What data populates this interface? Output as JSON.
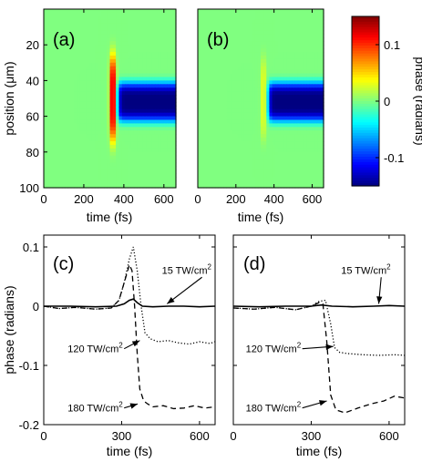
{
  "colorbar": {
    "label": "phase (radians)",
    "range": [
      -0.15,
      0.15
    ],
    "ticks": [
      "0.1",
      "0",
      "-0.1"
    ],
    "tick_values": [
      0.1,
      0,
      -0.1
    ],
    "colormap": "jet"
  },
  "chart_data": [
    {
      "type": "heatmap",
      "panel": "(a)",
      "xlabel": "time (fs)",
      "ylabel": "position (μm)",
      "xlim": [
        0,
        660
      ],
      "ylim": [
        100,
        0
      ],
      "xticks": [
        "0",
        "200",
        "400",
        "600"
      ],
      "yticks": [
        "20",
        "40",
        "60",
        "80",
        "100"
      ],
      "background_value": 0.0,
      "features": [
        {
          "kind": "positive-lobe",
          "t_center": 345,
          "pos_center": 50,
          "t_width": 14,
          "pos_halfwidth": 24,
          "peak": 0.15
        },
        {
          "kind": "negative-band",
          "t_start": 372,
          "pos_center": 52,
          "pos_halfwidth": 11,
          "depth": -0.15
        }
      ]
    },
    {
      "type": "heatmap",
      "panel": "(b)",
      "xlabel": "time (fs)",
      "xlim": [
        0,
        660
      ],
      "ylim": [
        100,
        0
      ],
      "xticks": [
        "0",
        "200",
        "400",
        "600"
      ],
      "background_value": 0.0,
      "features": [
        {
          "kind": "positive-lobe",
          "t_center": 345,
          "pos_center": 50,
          "t_width": 12,
          "pos_halfwidth": 22,
          "peak": 0.04
        },
        {
          "kind": "negative-band",
          "t_start": 372,
          "pos_center": 52,
          "pos_halfwidth": 11,
          "depth": -0.15
        }
      ]
    },
    {
      "type": "line",
      "panel": "(c)",
      "xlabel": "time (fs)",
      "ylabel": "phase (radians)",
      "xlim": [
        0,
        660
      ],
      "ylim": [
        -0.2,
        0.12
      ],
      "xticks": [
        "0",
        "300",
        "600"
      ],
      "yticks": [
        "0.1",
        "0",
        "-0.1",
        "-0.2"
      ],
      "series": [
        {
          "name": "15 TW/cm²",
          "style": "solid",
          "x": [
            0,
            100,
            200,
            280,
            310,
            330,
            345,
            360,
            380,
            420,
            480,
            540,
            600,
            660
          ],
          "y": [
            0.0,
            0.0,
            -0.001,
            0.0,
            0.004,
            0.01,
            0.012,
            0.006,
            0.0,
            -0.001,
            0.0,
            0.0,
            -0.001,
            0.0
          ]
        },
        {
          "name": "120 TW/cm²",
          "style": "dotted",
          "x": [
            0,
            60,
            120,
            200,
            260,
            290,
            310,
            330,
            345,
            360,
            375,
            390,
            410,
            440,
            480,
            520,
            560,
            600,
            640,
            660
          ],
          "y": [
            0.0,
            -0.004,
            -0.002,
            -0.005,
            -0.003,
            0.01,
            0.04,
            0.08,
            0.1,
            0.06,
            0.0,
            -0.045,
            -0.055,
            -0.06,
            -0.058,
            -0.062,
            -0.064,
            -0.06,
            -0.063,
            -0.06
          ]
        },
        {
          "name": "180 TW/cm²",
          "style": "dashed",
          "x": [
            0,
            60,
            120,
            200,
            260,
            290,
            310,
            330,
            340,
            350,
            360,
            370,
            385,
            400,
            420,
            460,
            500,
            540,
            580,
            620,
            660
          ],
          "y": [
            0.0,
            -0.004,
            -0.002,
            -0.005,
            -0.003,
            0.01,
            0.04,
            0.07,
            0.06,
            0.0,
            -0.08,
            -0.14,
            -0.16,
            -0.165,
            -0.17,
            -0.168,
            -0.173,
            -0.172,
            -0.168,
            -0.172,
            -0.17
          ]
        }
      ],
      "annotations": [
        {
          "text": "15 TW/cm",
          "sup": "2",
          "x": 455,
          "y": 0.055,
          "ax": 475,
          "ay": 0.004
        },
        {
          "text": "120 TW/cm",
          "sup": "2",
          "x": 92,
          "y": -0.078,
          "ax": 370,
          "ay": -0.058
        },
        {
          "text": "180 TW/cm",
          "sup": "2",
          "x": 92,
          "y": -0.178,
          "ax": 362,
          "ay": -0.165
        }
      ]
    },
    {
      "type": "line",
      "panel": "(d)",
      "xlabel": "time (fs)",
      "xlim": [
        0,
        660
      ],
      "ylim": [
        -0.2,
        0.12
      ],
      "xticks": [
        "0",
        "300",
        "600"
      ],
      "yticks": [
        "0.1",
        "0",
        "-0.1",
        "-0.2"
      ],
      "series": [
        {
          "name": "15 TW/cm²",
          "style": "solid",
          "x": [
            0,
            100,
            200,
            300,
            340,
            380,
            460,
            540,
            600,
            660
          ],
          "y": [
            0.0,
            -0.001,
            0.0,
            0.0,
            0.002,
            0.0,
            -0.001,
            0.0,
            0.001,
            0.0
          ]
        },
        {
          "name": "120 TW/cm²",
          "style": "dotted",
          "x": [
            0,
            80,
            160,
            240,
            300,
            330,
            355,
            375,
            390,
            410,
            440,
            500,
            560,
            620,
            660
          ],
          "y": [
            -0.003,
            -0.005,
            -0.002,
            -0.006,
            0.0,
            0.008,
            0.01,
            -0.03,
            -0.07,
            -0.078,
            -0.08,
            -0.082,
            -0.083,
            -0.082,
            -0.083
          ]
        },
        {
          "name": "180 TW/cm²",
          "style": "dashed",
          "x": [
            0,
            80,
            160,
            240,
            300,
            330,
            345,
            360,
            375,
            395,
            430,
            480,
            530,
            580,
            620,
            660
          ],
          "y": [
            -0.003,
            -0.005,
            -0.002,
            -0.006,
            0.0,
            0.006,
            0.004,
            -0.06,
            -0.15,
            -0.175,
            -0.18,
            -0.172,
            -0.165,
            -0.16,
            -0.152,
            -0.155
          ]
        }
      ],
      "annotations": [
        {
          "text": "15 TW/cm",
          "sup": "2",
          "x": 415,
          "y": 0.055,
          "ax": 560,
          "ay": 0.004
        },
        {
          "text": "120 TW/cm",
          "sup": "2",
          "x": 48,
          "y": -0.078,
          "ax": 385,
          "ay": -0.068
        },
        {
          "text": "180 TW/cm",
          "sup": "2",
          "x": 48,
          "y": -0.178,
          "ax": 360,
          "ay": -0.16
        }
      ]
    }
  ]
}
